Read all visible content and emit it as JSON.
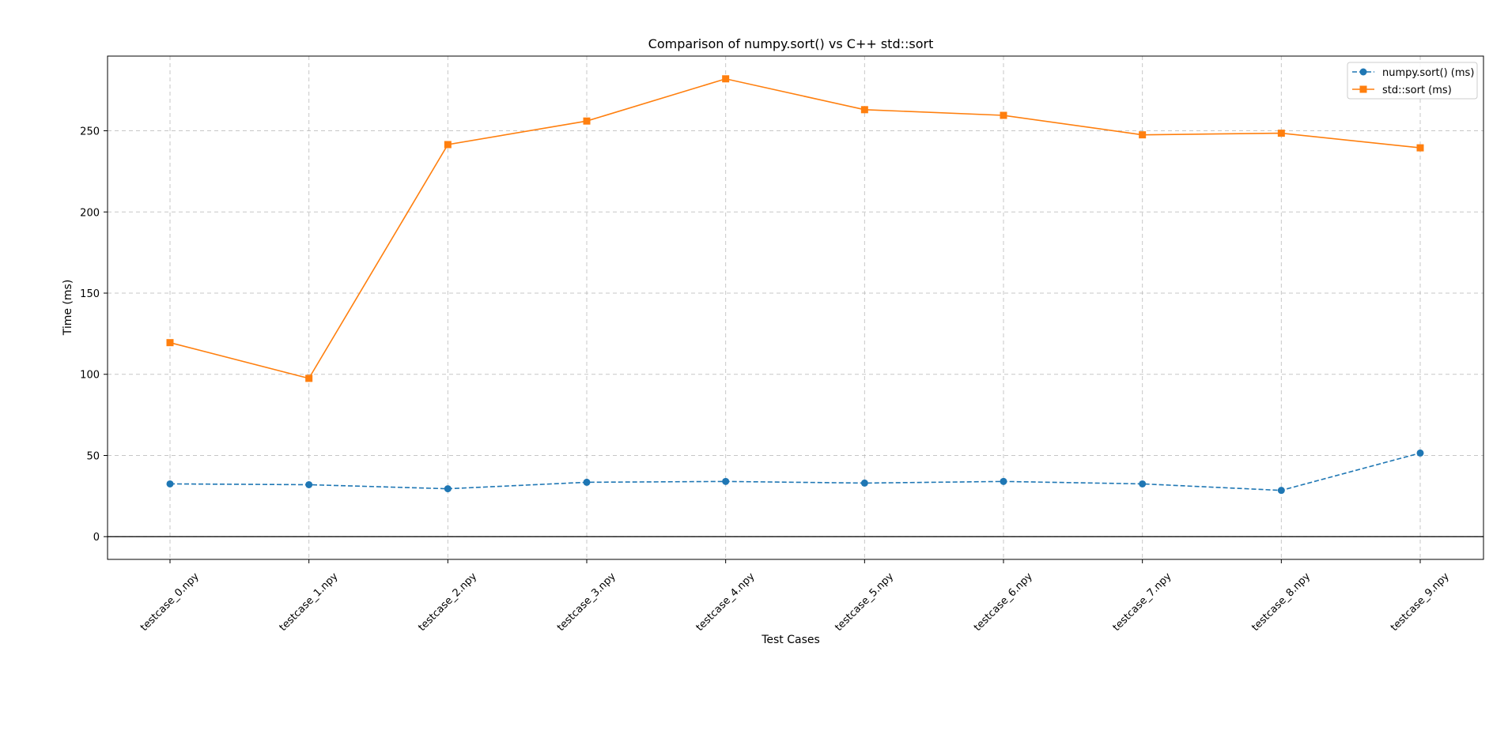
{
  "chart_data": {
    "type": "line",
    "title": "Comparison of numpy.sort() vs C++ std::sort",
    "xlabel": "Test Cases",
    "ylabel": "Time (ms)",
    "categories": [
      "testcase_0.npy",
      "testcase_1.npy",
      "testcase_2.npy",
      "testcase_3.npy",
      "testcase_4.npy",
      "testcase_5.npy",
      "testcase_6.npy",
      "testcase_7.npy",
      "testcase_8.npy",
      "testcase_9.npy"
    ],
    "ylim": [
      -14,
      296
    ],
    "yticks": [
      0,
      50,
      100,
      150,
      200,
      250
    ],
    "grid": true,
    "legend_position": "top-right",
    "reference_line_y": 0,
    "series": [
      {
        "name": "numpy.sort() (ms)",
        "color": "#1f77b4",
        "marker": "circle",
        "line_style": "dashed",
        "values": [
          32.5,
          32,
          29.5,
          33.5,
          34,
          33,
          34,
          32.5,
          28.5,
          51.5
        ]
      },
      {
        "name": "std::sort (ms)",
        "color": "#ff7f0e",
        "marker": "square",
        "line_style": "solid",
        "values": [
          119.5,
          97.5,
          241.5,
          256,
          282,
          263,
          259.5,
          247.5,
          248.5,
          239.5
        ]
      }
    ]
  }
}
